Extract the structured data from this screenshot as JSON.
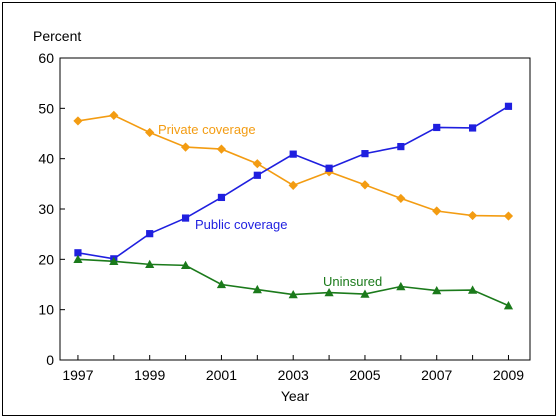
{
  "chart_data": {
    "type": "line",
    "title": "",
    "ylabel": "Percent",
    "xlabel": "Year",
    "ylim": [
      0,
      60
    ],
    "xlim": [
      1997,
      2009
    ],
    "y_ticks": [
      "0",
      "10",
      "20",
      "30",
      "40",
      "50",
      "60"
    ],
    "x_ticks": [
      "1997",
      "1999",
      "2001",
      "2003",
      "2005",
      "2007",
      "2009"
    ],
    "grid": false,
    "legend": "inline-labels",
    "x": [
      1997,
      1998,
      1999,
      2000,
      2001,
      2002,
      2003,
      2004,
      2005,
      2006,
      2007,
      2008,
      2009
    ],
    "series": [
      {
        "name": "Private coverage",
        "color": "#f39c12",
        "marker": "diamond",
        "values": [
          47.5,
          48.6,
          45.2,
          42.3,
          41.9,
          39.0,
          34.7,
          37.4,
          34.8,
          32.1,
          29.6,
          28.7,
          28.6
        ]
      },
      {
        "name": "Public coverage",
        "color": "#1f1fdf",
        "marker": "square",
        "values": [
          21.3,
          20.1,
          25.1,
          28.2,
          32.3,
          36.7,
          40.9,
          38.1,
          41.0,
          42.4,
          46.2,
          46.1,
          50.4
        ]
      },
      {
        "name": "Uninsured",
        "color": "#1b7a1b",
        "marker": "triangle",
        "values": [
          20.0,
          19.6,
          19.0,
          18.8,
          15.0,
          14.0,
          13.0,
          13.4,
          13.1,
          14.6,
          13.8,
          13.9,
          10.8
        ]
      }
    ]
  }
}
